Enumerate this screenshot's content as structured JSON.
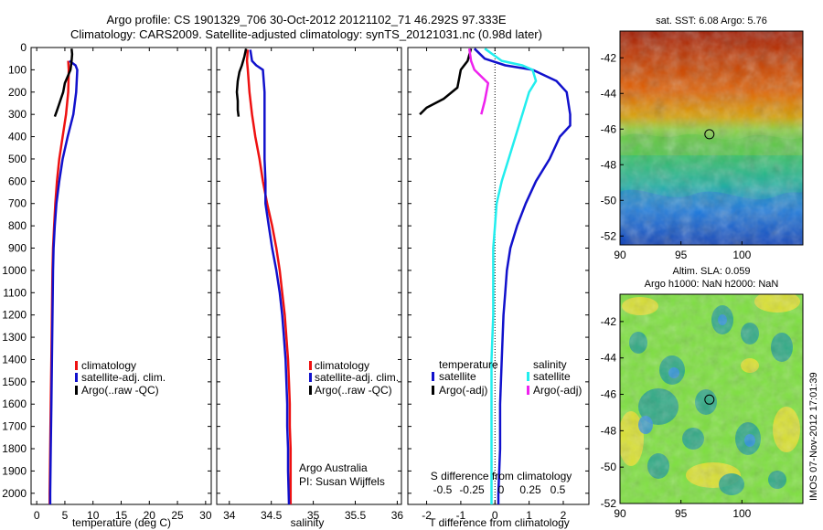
{
  "figure": {
    "title_line1": "Argo profile: CS 1901329_706 30-Oct-2012 20121102_71 46.292S 97.333E",
    "title_line2": "Climatology: CARS2009. Satellite-adjusted climatology: synTS_20121031.nc (0.98d later)",
    "footer_stamp": "IMOS 07-Nov-2012 17:01:39"
  },
  "colors": {
    "climatology": "#ee1111",
    "satellite": "#1111cc",
    "argo": "#000000",
    "sat_salinity": "#22eeee",
    "argo_salinity": "#ee22ee"
  },
  "depth_axis": {
    "ylim": [
      0,
      2050
    ],
    "ticks": [
      0,
      100,
      200,
      300,
      400,
      500,
      600,
      700,
      800,
      900,
      1000,
      1100,
      1200,
      1300,
      1400,
      1500,
      1600,
      1700,
      1800,
      1900,
      2000
    ]
  },
  "chart_data": [
    {
      "type": "line",
      "id": "temperature",
      "xlabel": "temperature (deg C)",
      "xlim": [
        -1,
        31
      ],
      "xticks": [
        0,
        5,
        10,
        15,
        20,
        25,
        30
      ],
      "xtick_labels": [
        "0",
        "5",
        "10",
        "15",
        "20",
        "25",
        "30"
      ],
      "legend": [
        "climatology",
        "satellite-adj. clim.",
        "Argo(..raw -QC)"
      ],
      "series": [
        {
          "key": "climatology",
          "color": "#ee1111",
          "points": [
            [
              5.6,
              60
            ],
            [
              5.7,
              100
            ],
            [
              5.6,
              200
            ],
            [
              5.2,
              300
            ],
            [
              4.6,
              400
            ],
            [
              4.0,
              500
            ],
            [
              3.6,
              600
            ],
            [
              3.3,
              700
            ],
            [
              3.1,
              800
            ],
            [
              2.9,
              900
            ],
            [
              2.8,
              1000
            ],
            [
              2.7,
              1200
            ],
            [
              2.6,
              1400
            ],
            [
              2.5,
              1600
            ],
            [
              2.4,
              1800
            ],
            [
              2.3,
              2000
            ],
            [
              2.3,
              2050
            ]
          ]
        },
        {
          "key": "satellite",
          "color": "#1111cc",
          "points": [
            [
              5.8,
              60
            ],
            [
              6.9,
              80
            ],
            [
              7.2,
              100
            ],
            [
              7.0,
              200
            ],
            [
              6.5,
              300
            ],
            [
              5.5,
              400
            ],
            [
              4.6,
              500
            ],
            [
              4.0,
              600
            ],
            [
              3.5,
              700
            ],
            [
              3.2,
              800
            ],
            [
              3.0,
              900
            ],
            [
              2.9,
              1000
            ],
            [
              2.8,
              1200
            ],
            [
              2.7,
              1400
            ],
            [
              2.6,
              1600
            ],
            [
              2.5,
              1800
            ],
            [
              2.4,
              2000
            ],
            [
              2.4,
              2050
            ]
          ]
        },
        {
          "key": "argo",
          "color": "#000000",
          "points": [
            [
              6.2,
              5
            ],
            [
              6.3,
              30
            ],
            [
              6.2,
              60
            ],
            [
              6.0,
              100
            ],
            [
              5.5,
              130
            ],
            [
              5.0,
              160
            ],
            [
              4.7,
              200
            ],
            [
              4.3,
              230
            ],
            [
              3.9,
              260
            ],
            [
              3.5,
              290
            ],
            [
              3.2,
              310
            ]
          ]
        }
      ],
      "annotations": []
    },
    {
      "type": "line",
      "id": "salinity",
      "xlabel": "salinity",
      "xlim": [
        33.85,
        36.05
      ],
      "xticks": [
        34,
        34.5,
        35,
        35.5,
        36
      ],
      "xtick_labels": [
        "34",
        "34.5",
        "35",
        "35.5",
        "36"
      ],
      "legend": [
        "climatology",
        "satellite-adj. clim.",
        "Argo(..raw -QC)"
      ],
      "series": [
        {
          "key": "climatology",
          "color": "#ee1111",
          "points": [
            [
              34.22,
              10
            ],
            [
              34.21,
              60
            ],
            [
              34.22,
              100
            ],
            [
              34.24,
              200
            ],
            [
              34.27,
              300
            ],
            [
              34.31,
              400
            ],
            [
              34.36,
              500
            ],
            [
              34.4,
              600
            ],
            [
              34.45,
              700
            ],
            [
              34.51,
              800
            ],
            [
              34.56,
              900
            ],
            [
              34.6,
              1000
            ],
            [
              34.63,
              1100
            ],
            [
              34.66,
              1200
            ],
            [
              34.68,
              1300
            ],
            [
              34.7,
              1400
            ],
            [
              34.71,
              1500
            ],
            [
              34.72,
              1600
            ],
            [
              34.72,
              1700
            ],
            [
              34.73,
              1800
            ],
            [
              34.73,
              1900
            ],
            [
              34.73,
              2050
            ]
          ]
        },
        {
          "key": "satellite",
          "color": "#1111cc",
          "points": [
            [
              34.25,
              10
            ],
            [
              34.27,
              60
            ],
            [
              34.32,
              80
            ],
            [
              34.4,
              100
            ],
            [
              34.42,
              200
            ],
            [
              34.42,
              300
            ],
            [
              34.42,
              400
            ],
            [
              34.42,
              500
            ],
            [
              34.43,
              600
            ],
            [
              34.43,
              700
            ],
            [
              34.47,
              800
            ],
            [
              34.51,
              900
            ],
            [
              34.56,
              1000
            ],
            [
              34.6,
              1100
            ],
            [
              34.63,
              1200
            ],
            [
              34.65,
              1300
            ],
            [
              34.67,
              1400
            ],
            [
              34.68,
              1500
            ],
            [
              34.69,
              1600
            ],
            [
              34.69,
              1700
            ],
            [
              34.7,
              1800
            ],
            [
              34.7,
              1900
            ],
            [
              34.71,
              2050
            ]
          ]
        },
        {
          "key": "argo",
          "color": "#000000",
          "points": [
            [
              34.2,
              5
            ],
            [
              34.18,
              40
            ],
            [
              34.15,
              80
            ],
            [
              34.12,
              110
            ],
            [
              34.1,
              150
            ],
            [
              34.09,
              200
            ],
            [
              34.1,
              240
            ],
            [
              34.1,
              280
            ],
            [
              34.11,
              310
            ]
          ]
        }
      ],
      "annotations": [
        "Argo Australia",
        "PI: Susan Wijffels"
      ]
    },
    {
      "type": "line",
      "id": "difference",
      "xlabel": "T difference from climatology",
      "xlabel_top": "S difference from climatology",
      "xlim": [
        -2.55,
        2.75
      ],
      "xticks": [
        -2,
        -1,
        0,
        1,
        2
      ],
      "xtick_labels": [
        "-2",
        "-1",
        "0",
        "1",
        "2"
      ],
      "s_tick_labels": [
        "-0.5",
        "-0.25",
        "0",
        "0.25",
        "0.5"
      ],
      "legend_groups": [
        "temperature",
        "salinity"
      ],
      "legend": [
        "satellite",
        "Argo(-adj)",
        "satellite",
        "Argo(-adj)"
      ],
      "zero_line": "dotted",
      "series": [
        {
          "key": "t_sat",
          "color": "#1111cc",
          "points": [
            [
              -0.6,
              5
            ],
            [
              -0.3,
              50
            ],
            [
              0.3,
              80
            ],
            [
              1.1,
              100
            ],
            [
              1.8,
              150
            ],
            [
              2.1,
              200
            ],
            [
              2.2,
              300
            ],
            [
              2.2,
              350
            ],
            [
              1.9,
              400
            ],
            [
              1.6,
              500
            ],
            [
              1.2,
              600
            ],
            [
              0.9,
              700
            ],
            [
              0.65,
              800
            ],
            [
              0.45,
              900
            ],
            [
              0.35,
              1000
            ],
            [
              0.3,
              1100
            ],
            [
              0.25,
              1200
            ],
            [
              0.2,
              1400
            ],
            [
              0.15,
              1600
            ],
            [
              0.15,
              1800
            ],
            [
              0.1,
              2000
            ],
            [
              0.1,
              2050
            ]
          ]
        },
        {
          "key": "s_sat",
          "color": "#22eeee",
          "points": [
            [
              -0.3,
              5
            ],
            [
              0.2,
              60
            ],
            [
              0.8,
              80
            ],
            [
              1.1,
              100
            ],
            [
              1.2,
              150
            ],
            [
              1.0,
              200
            ],
            [
              0.8,
              300
            ],
            [
              0.6,
              400
            ],
            [
              0.4,
              500
            ],
            [
              0.2,
              600
            ],
            [
              0.05,
              700
            ],
            [
              0.0,
              800
            ],
            [
              -0.05,
              900
            ],
            [
              -0.05,
              1000
            ],
            [
              -0.05,
              1100
            ],
            [
              -0.05,
              1200
            ],
            [
              -0.1,
              1400
            ],
            [
              -0.1,
              1600
            ],
            [
              -0.1,
              1800
            ],
            [
              -0.1,
              2000
            ],
            [
              -0.1,
              2050
            ]
          ]
        },
        {
          "key": "t_argo",
          "color": "#000000",
          "points": [
            [
              -0.7,
              5
            ],
            [
              -0.8,
              60
            ],
            [
              -1.0,
              100
            ],
            [
              -1.1,
              180
            ],
            [
              -1.5,
              230
            ],
            [
              -2.0,
              270
            ],
            [
              -2.2,
              300
            ]
          ]
        },
        {
          "key": "s_argo",
          "color": "#ee22ee",
          "points": [
            [
              -0.75,
              5
            ],
            [
              -0.7,
              60
            ],
            [
              -0.6,
              100
            ],
            [
              -0.2,
              160
            ],
            [
              -0.3,
              240
            ],
            [
              -0.4,
              300
            ]
          ]
        }
      ],
      "annotations": []
    }
  ],
  "maps": [
    {
      "id": "sst-map",
      "title_lines": [
        "sat. SST: 6.08 Argo: 5.76"
      ],
      "xticks": [
        90,
        95,
        100
      ],
      "yticks": [
        -42,
        -44,
        -46,
        -48,
        -50,
        -52
      ],
      "xlim": [
        90,
        105
      ],
      "ylim": [
        -52.5,
        -40.5
      ],
      "marker": [
        97.333,
        -46.292
      ]
    },
    {
      "id": "sla-map",
      "title_lines": [
        "Altim. SLA: 0.059",
        "Argo h1000: NaN h2000: NaN"
      ],
      "xticks": [
        90,
        95,
        100
      ],
      "yticks": [
        -42,
        -44,
        -46,
        -48,
        -50,
        -52
      ],
      "xlim": [
        90,
        105
      ],
      "ylim": [
        -52,
        -40.5
      ],
      "marker": [
        97.333,
        -46.292
      ]
    }
  ]
}
